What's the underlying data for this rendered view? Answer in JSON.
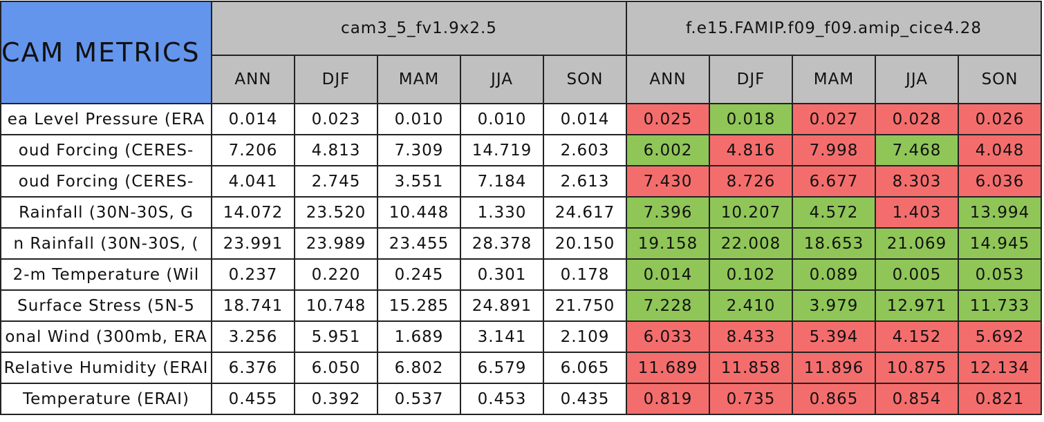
{
  "header": {
    "title": "CAM METRICS",
    "groups": [
      {
        "name": "cam3_5_fv1.9x2.5",
        "seasons": [
          "ANN",
          "DJF",
          "MAM",
          "JJA",
          "SON"
        ]
      },
      {
        "name": "f.e15.FAMIP.f09_f09.amip_cice4.28",
        "seasons": [
          "ANN",
          "DJF",
          "MAM",
          "JJA",
          "SON"
        ]
      }
    ]
  },
  "table": {
    "rows": [
      {
        "label": "ea Level Pressure (ERA",
        "cells": [
          "0.014",
          "0.023",
          "0.010",
          "0.010",
          "0.014",
          "0.025",
          "0.018",
          "0.027",
          "0.028",
          "0.026"
        ],
        "fills": [
          "#f46d6d",
          "#8fc657",
          "#f46d6d",
          "#f46d6d",
          "#f46d6d"
        ]
      },
      {
        "label": "oud Forcing (CERES-",
        "cells": [
          "7.206",
          "4.813",
          "7.309",
          "14.719",
          "2.603",
          "6.002",
          "4.816",
          "7.998",
          "7.468",
          "4.048"
        ],
        "fills": [
          "#8fc657",
          "#f46d6d",
          "#f46d6d",
          "#8fc657",
          "#f46d6d"
        ]
      },
      {
        "label": "oud Forcing (CERES-",
        "cells": [
          "4.041",
          "2.745",
          "3.551",
          "7.184",
          "2.613",
          "7.430",
          "8.726",
          "6.677",
          "8.303",
          "6.036"
        ],
        "fills": [
          "#f46d6d",
          "#f46d6d",
          "#f46d6d",
          "#f46d6d",
          "#f46d6d"
        ]
      },
      {
        "label": "Rainfall (30N-30S, G",
        "cells": [
          "14.072",
          "23.520",
          "10.448",
          "1.330",
          "24.617",
          "7.396",
          "10.207",
          "4.572",
          "1.403",
          "13.994"
        ],
        "fills": [
          "#8fc657",
          "#8fc657",
          "#8fc657",
          "#f46d6d",
          "#8fc657"
        ]
      },
      {
        "label": "n Rainfall (30N-30S, (",
        "cells": [
          "23.991",
          "23.989",
          "23.455",
          "28.378",
          "20.150",
          "19.158",
          "22.008",
          "18.653",
          "21.069",
          "14.945"
        ],
        "fills": [
          "#8fc657",
          "#8fc657",
          "#8fc657",
          "#8fc657",
          "#8fc657"
        ]
      },
      {
        "label": "2-m Temperature (Wil",
        "cells": [
          "0.237",
          "0.220",
          "0.245",
          "0.301",
          "0.178",
          "0.014",
          "0.102",
          "0.089",
          "0.005",
          "0.053"
        ],
        "fills": [
          "#8fc657",
          "#8fc657",
          "#8fc657",
          "#8fc657",
          "#8fc657"
        ]
      },
      {
        "label": "Surface Stress (5N-5",
        "cells": [
          "18.741",
          "10.748",
          "15.285",
          "24.891",
          "21.750",
          "7.228",
          "2.410",
          "3.979",
          "12.971",
          "11.733"
        ],
        "fills": [
          "#8fc657",
          "#8fc657",
          "#8fc657",
          "#8fc657",
          "#8fc657"
        ]
      },
      {
        "label": "onal Wind (300mb, ERA",
        "cells": [
          "3.256",
          "5.951",
          "1.689",
          "3.141",
          "2.109",
          "6.033",
          "8.433",
          "5.394",
          "4.152",
          "5.692"
        ],
        "fills": [
          "#f46d6d",
          "#f46d6d",
          "#f46d6d",
          "#f46d6d",
          "#f46d6d"
        ]
      },
      {
        "label": "Relative Humidity (ERAI",
        "cells": [
          "6.376",
          "6.050",
          "6.802",
          "6.579",
          "6.065",
          "11.689",
          "11.858",
          "11.896",
          "10.875",
          "12.134"
        ],
        "fills": [
          "#f46d6d",
          "#f46d6d",
          "#f46d6d",
          "#f46d6d",
          "#f46d6d"
        ]
      },
      {
        "label": "Temperature (ERAI)",
        "cells": [
          "0.455",
          "0.392",
          "0.537",
          "0.453",
          "0.435",
          "0.819",
          "0.735",
          "0.865",
          "0.854",
          "0.821"
        ],
        "fills": [
          "#f46d6d",
          "#f46d6d",
          "#f46d6d",
          "#f46d6d",
          "#f46d6d"
        ]
      }
    ]
  }
}
